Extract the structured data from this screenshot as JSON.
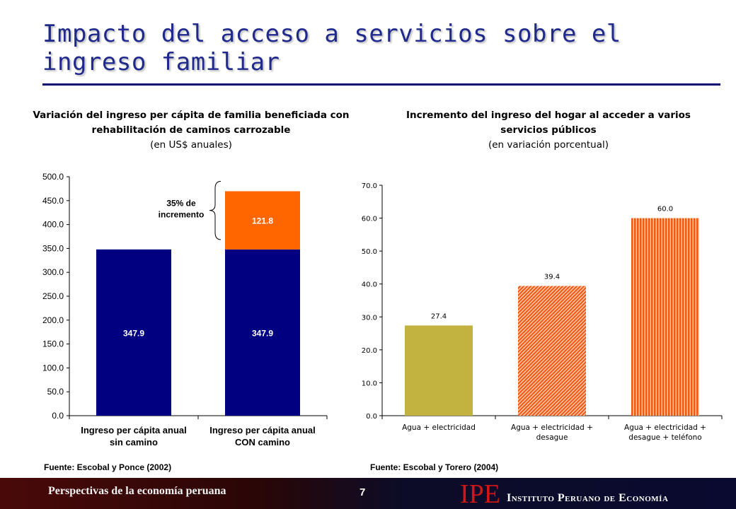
{
  "slide": {
    "title": "Impacto del acceso a servicios sobre el ingreso familiar",
    "page_number": "7",
    "footer_left": "Perspectivas de la economía peruana",
    "logo_text": "IPE",
    "institution": "Instituto Peruano de Economía"
  },
  "colors": {
    "title": "#1f2a8c",
    "navy_bar": "#000080",
    "orange_bar": "#ff6600",
    "olive_bar": "#c2b23f",
    "hatched_orange_bar": "#f05a14"
  },
  "chart_data": [
    {
      "type": "bar",
      "stacked": true,
      "title": "Variación del ingreso per cápita de familia beneficiada con rehabilitación de caminos carrozable",
      "subtitle": "(en US$ anuales)",
      "categories": [
        "Ingreso per cápita anual sin camino",
        "Ingreso per cápita anual CON camino"
      ],
      "category_lines": [
        [
          "Ingreso per cápita anual",
          "sin camino"
        ],
        [
          "Ingreso per cápita anual",
          "CON camino"
        ]
      ],
      "series": [
        {
          "values": [
            347.9,
            347.9
          ],
          "color": "#000080"
        },
        {
          "values": [
            0,
            121.8
          ],
          "color": "#ff6600"
        }
      ],
      "data_labels": [
        [
          "347.9",
          "347.9"
        ],
        [
          "",
          "121.8"
        ]
      ],
      "ylim": [
        0,
        500
      ],
      "yticks": [
        "0.0",
        "50.0",
        "100.0",
        "150.0",
        "200.0",
        "250.0",
        "300.0",
        "350.0",
        "400.0",
        "450.0",
        "500.0"
      ],
      "annotation": [
        "35% de",
        "incremento"
      ],
      "source": "Fuente: Escobal y Ponce (2002)"
    },
    {
      "type": "bar",
      "title": "Incremento del ingreso del hogar al acceder a varios servicios públicos",
      "subtitle": "(en variación porcentual)",
      "categories": [
        "Agua + electricidad",
        "Agua + electricidad + desague",
        "Agua + electricidad + desague + teléfono"
      ],
      "category_lines": [
        [
          "Agua + electricidad"
        ],
        [
          "Agua + electricidad +",
          "desague"
        ],
        [
          "Agua + electricidad +",
          "desague + teléfono"
        ]
      ],
      "values": [
        27.4,
        39.4,
        60.0
      ],
      "data_labels": [
        "27.4",
        "39.4",
        "60.0"
      ],
      "bar_styles": [
        "solid-olive",
        "hatched-orange",
        "vertical-stripes-orange"
      ],
      "ylim": [
        0,
        70
      ],
      "yticks": [
        "0.0",
        "10.0",
        "20.0",
        "30.0",
        "40.0",
        "50.0",
        "60.0",
        "70.0"
      ],
      "source": "Fuente: Escobal y Torero (2004)"
    }
  ]
}
